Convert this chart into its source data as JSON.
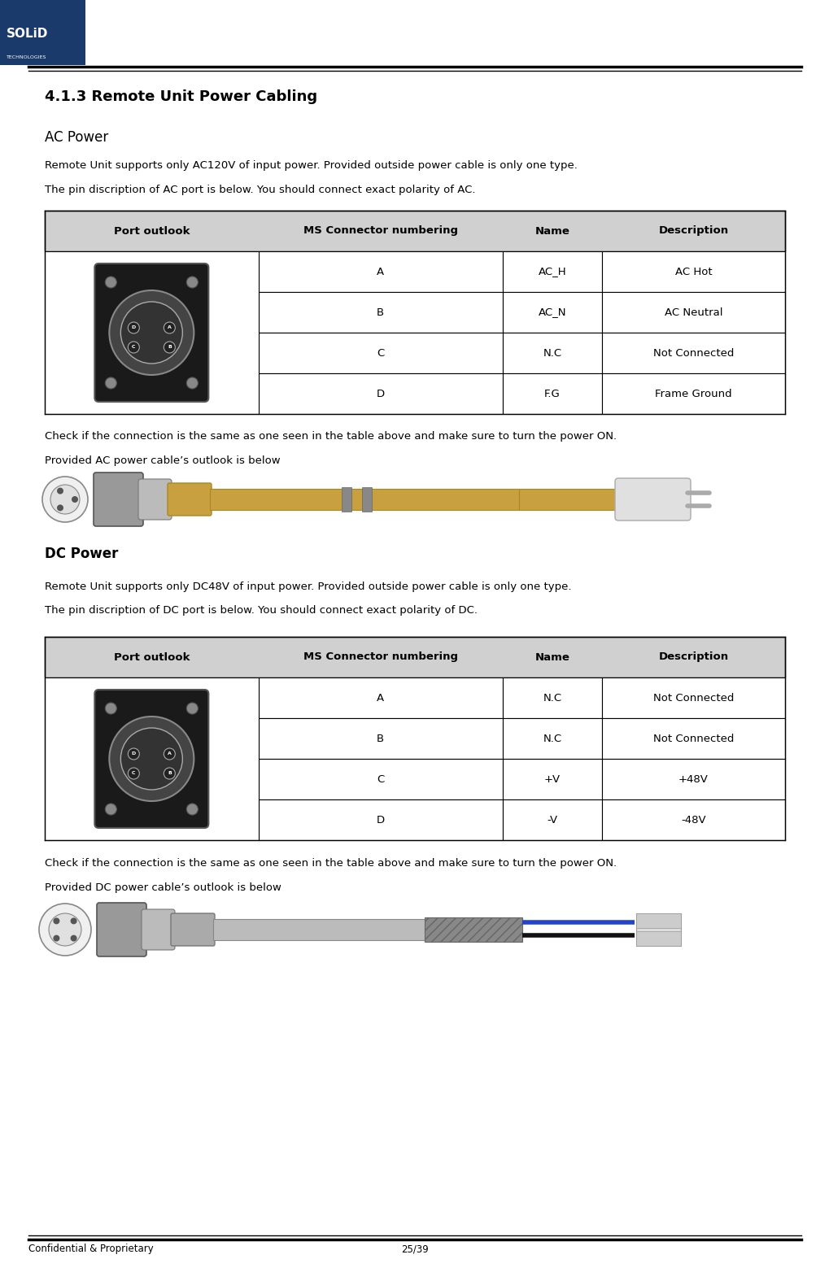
{
  "page_width": 10.19,
  "page_height": 15.64,
  "bg_color": "#ffffff",
  "header_line_color": "#000000",
  "footer_line_color": "#000000",
  "logo_box_color": "#1a3a6b",
  "logo_text_top": "SOLiD",
  "logo_text_bottom": "TECHNOLOGIES",
  "footer_left": "Confidential & Proprietary",
  "footer_right": "25/39",
  "section_title": "4.1.3 Remote Unit Power Cabling",
  "ac_heading": "AC Power",
  "ac_para1": "Remote Unit supports only AC120V of input power. Provided outside power cable is only one type.",
  "ac_para2": "The pin discription of AC port is below. You should connect exact polarity of AC.",
  "ac_check": "Check if the connection is the same as one seen in the table above and make sure to turn the power ON.",
  "ac_cable": "Provided AC power cable’s outlook is below",
  "dc_heading": "DC Power",
  "dc_para1": "Remote Unit supports only DC48V of input power. Provided outside power cable is only one type.",
  "dc_para2": "The pin discription of DC port is below. You should connect exact polarity of DC.",
  "dc_check": "Check if the connection is the same as one seen in the table above and make sure to turn the power ON.",
  "dc_cable": "Provided DC power cable’s outlook is below",
  "table_header_bg": "#d0d0d0",
  "table_row_bg": "#ffffff",
  "table_header_color": "#000000",
  "table_border_color": "#000000",
  "ac_table_headers": [
    "Port outlook",
    "MS Connector numbering",
    "Name",
    "Description"
  ],
  "ac_table_rows": [
    [
      "A",
      "AC_H",
      "AC Hot"
    ],
    [
      "B",
      "AC_N",
      "AC Neutral"
    ],
    [
      "C",
      "N.C",
      "Not Connected"
    ],
    [
      "D",
      "F.G",
      "Frame Ground"
    ]
  ],
  "dc_table_headers": [
    "Port outlook",
    "MS Connector numbering",
    "Name",
    "Description"
  ],
  "dc_table_rows": [
    [
      "A",
      "N.C",
      "Not Connected"
    ],
    [
      "B",
      "N.C",
      "Not Connected"
    ],
    [
      "C",
      "+V",
      "+48V"
    ],
    [
      "D",
      "-V",
      "-48V"
    ]
  ]
}
